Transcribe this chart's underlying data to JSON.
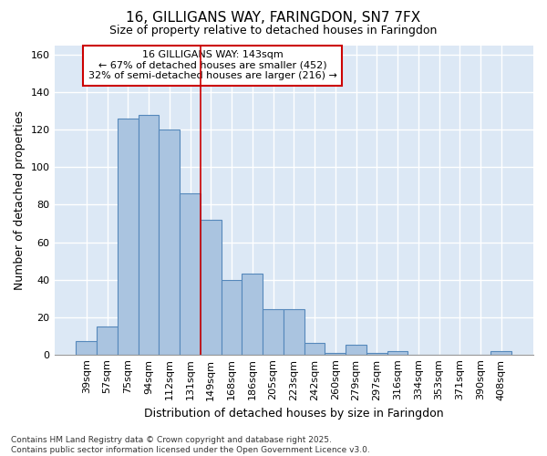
{
  "title_line1": "16, GILLIGANS WAY, FARINGDON, SN7 7FX",
  "title_line2": "Size of property relative to detached houses in Faringdon",
  "xlabel": "Distribution of detached houses by size in Faringdon",
  "ylabel": "Number of detached properties",
  "annotation_line1": "16 GILLIGANS WAY: 143sqm",
  "annotation_line2": "← 67% of detached houses are smaller (452)",
  "annotation_line3": "32% of semi-detached houses are larger (216) →",
  "footnote_line1": "Contains HM Land Registry data © Crown copyright and database right 2025.",
  "footnote_line2": "Contains public sector information licensed under the Open Government Licence v3.0.",
  "bar_color": "#aac4e0",
  "bar_edge_color": "#5588bb",
  "fig_background": "#ffffff",
  "plot_background": "#dce8f5",
  "grid_color": "#ffffff",
  "annotation_box_facecolor": "#ffffff",
  "annotation_box_edgecolor": "#cc0000",
  "vline_color": "#cc0000",
  "categories": [
    "39sqm",
    "57sqm",
    "75sqm",
    "94sqm",
    "112sqm",
    "131sqm",
    "149sqm",
    "168sqm",
    "186sqm",
    "205sqm",
    "223sqm",
    "242sqm",
    "260sqm",
    "279sqm",
    "297sqm",
    "316sqm",
    "334sqm",
    "353sqm",
    "371sqm",
    "390sqm",
    "408sqm"
  ],
  "values": [
    7,
    15,
    126,
    128,
    120,
    86,
    72,
    40,
    43,
    24,
    24,
    6,
    1,
    5,
    1,
    2,
    0,
    0,
    0,
    0,
    2
  ],
  "vline_x_index": 5,
  "ylim": [
    0,
    165
  ],
  "yticks": [
    0,
    20,
    40,
    60,
    80,
    100,
    120,
    140,
    160
  ],
  "title1_fontsize": 11,
  "title2_fontsize": 9,
  "tick_fontsize": 8,
  "ylabel_fontsize": 9,
  "xlabel_fontsize": 9,
  "annotation_fontsize": 8,
  "footnote_fontsize": 6.5
}
